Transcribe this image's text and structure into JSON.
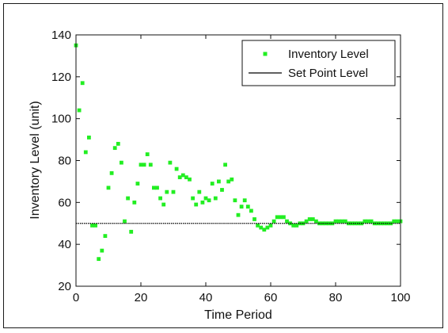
{
  "chart_data": {
    "type": "scatter",
    "xlabel": "Time Period",
    "ylabel": "Inventory Level (unit)",
    "xlim": [
      0,
      100
    ],
    "ylim": [
      20,
      140
    ],
    "xticks": [
      0,
      20,
      40,
      60,
      80,
      100
    ],
    "yticks": [
      20,
      40,
      60,
      80,
      100,
      120,
      140
    ],
    "grid": false,
    "legend_placement": "top-right",
    "series": [
      {
        "name": "Inventory Level",
        "kind": "points",
        "color": "#22ee22",
        "x": [
          0,
          1,
          2,
          3,
          4,
          5,
          6,
          7,
          8,
          9,
          10,
          11,
          12,
          13,
          14,
          15,
          16,
          17,
          18,
          19,
          20,
          21,
          22,
          23,
          24,
          25,
          26,
          27,
          28,
          29,
          30,
          31,
          32,
          33,
          34,
          35,
          36,
          37,
          38,
          39,
          40,
          41,
          42,
          43,
          44,
          45,
          46,
          47,
          48,
          49,
          50,
          51,
          52,
          53,
          54,
          55,
          56,
          57,
          58,
          59,
          60,
          61,
          62,
          63,
          64,
          65,
          66,
          67,
          68,
          69,
          70,
          71,
          72,
          73,
          74,
          75,
          76,
          77,
          78,
          79,
          80,
          81,
          82,
          83,
          84,
          85,
          86,
          87,
          88,
          89,
          90,
          91,
          92,
          93,
          94,
          95,
          96,
          97,
          98,
          99,
          100
        ],
        "y": [
          135,
          104,
          117,
          84,
          91,
          49,
          49,
          33,
          37,
          44,
          67,
          74,
          86,
          88,
          79,
          51,
          62,
          46,
          60,
          69,
          78,
          78,
          83,
          78,
          67,
          67,
          62,
          59,
          65,
          79,
          65,
          76,
          72,
          73,
          72,
          71,
          62,
          59,
          65,
          60,
          62,
          61,
          69,
          62,
          70,
          66,
          78,
          70,
          71,
          61,
          54,
          58,
          61,
          58,
          56,
          52,
          49,
          48,
          47,
          48,
          49,
          51,
          53,
          53,
          53,
          51,
          50,
          49,
          49,
          50,
          50,
          51,
          52,
          52,
          51,
          50,
          50,
          50,
          50,
          50,
          51,
          51,
          51,
          51,
          50,
          50,
          50,
          50,
          50,
          51,
          51,
          51,
          50,
          50,
          50,
          50,
          50,
          50,
          51,
          51,
          51
        ]
      },
      {
        "name": "Set Point Level",
        "kind": "line",
        "color": "#000000",
        "x": [
          0,
          100
        ],
        "y": [
          50,
          50
        ]
      }
    ]
  }
}
